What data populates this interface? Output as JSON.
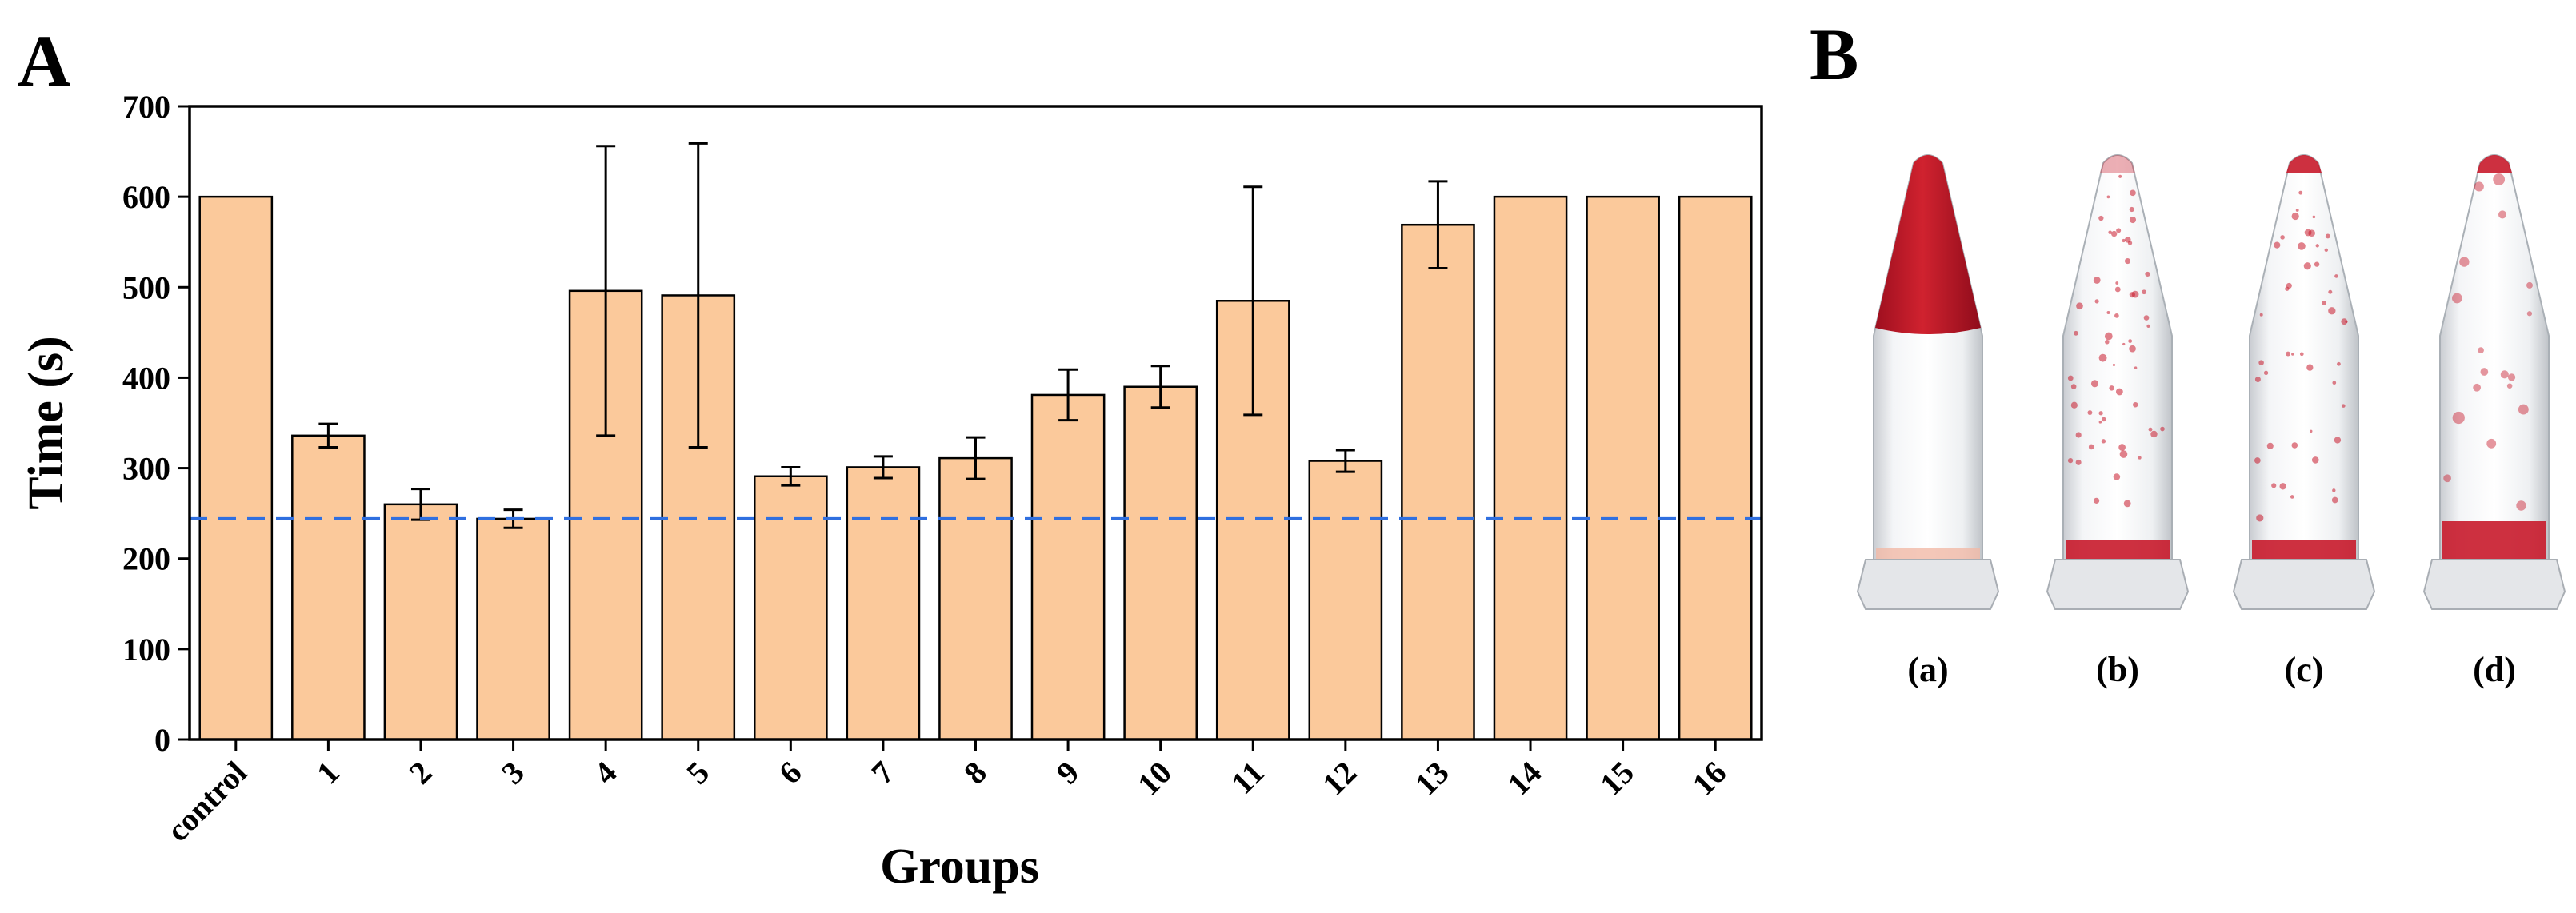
{
  "panels": {
    "a_label": "A",
    "b_label": "B"
  },
  "chart_data": {
    "type": "bar",
    "xlabel": "Groups",
    "ylabel": "Time (s)",
    "ylim": [
      0,
      700
    ],
    "yticks": [
      0,
      100,
      200,
      300,
      400,
      500,
      600,
      700
    ],
    "categories": [
      "control",
      "1",
      "2",
      "3",
      "4",
      "5",
      "6",
      "7",
      "8",
      "9",
      "10",
      "11",
      "12",
      "13",
      "14",
      "15",
      "16"
    ],
    "values": [
      600,
      336,
      260,
      244,
      496,
      491,
      291,
      301,
      311,
      381,
      390,
      485,
      308,
      569,
      600,
      600,
      600
    ],
    "errors": [
      0,
      13,
      17,
      10,
      160,
      168,
      10,
      12,
      23,
      28,
      23,
      126,
      12,
      48,
      0,
      0,
      0
    ],
    "reference_line": {
      "value": 244,
      "style": "dashed",
      "color": "#2f6fe0"
    },
    "bar_color": "#fbc99b",
    "bar_edge_color": "#000000",
    "grid": false,
    "legend": "none"
  },
  "photo": {
    "tubes": [
      {
        "label": "(a)"
      },
      {
        "label": "(b)"
      },
      {
        "label": "(c)"
      },
      {
        "label": "(d)"
      }
    ],
    "blood_color": "#c8192b"
  }
}
